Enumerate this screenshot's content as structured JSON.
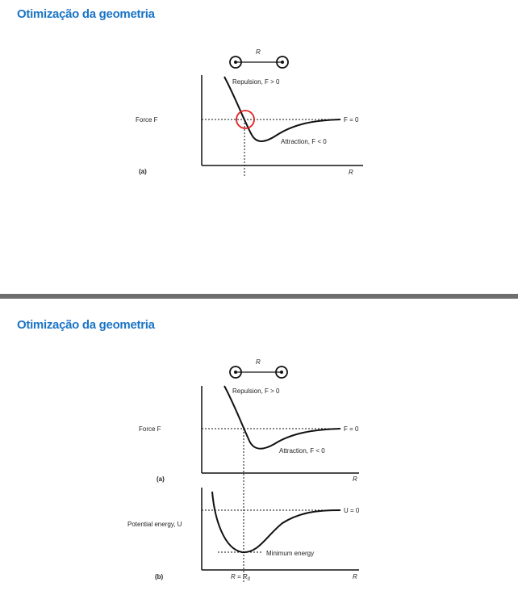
{
  "slide1": {
    "title": "Otimização da geometria",
    "figure": {
      "molecule_label": "R",
      "repulsion": "Repulsion, F > 0",
      "force_label": "Force F",
      "zero_label": "F = 0",
      "attraction": "Attraction, F < 0",
      "panel_label": "(a)",
      "x_label": "R"
    },
    "highlight_color": "#e02020"
  },
  "slide2": {
    "title": "Otimização da geometria",
    "figure": {
      "molecule_label": "R",
      "repulsion": "Repulsion, F > 0",
      "force_label": "Force F",
      "zero_label": "F = 0",
      "attraction": "Attraction, F < 0",
      "panel_a_label": "(a)",
      "x_label_a": "R",
      "potential_label": "Potential energy, U",
      "zero_label_u": "U = 0",
      "minimum": "Minimum energy",
      "panel_b_label": "(b)",
      "eq_label": "R = R",
      "eq_sub": "0",
      "x_label_b": "R"
    }
  },
  "colors": {
    "title": "#1b75c6",
    "separator": "#6e6e6e",
    "curve": "#111111"
  }
}
